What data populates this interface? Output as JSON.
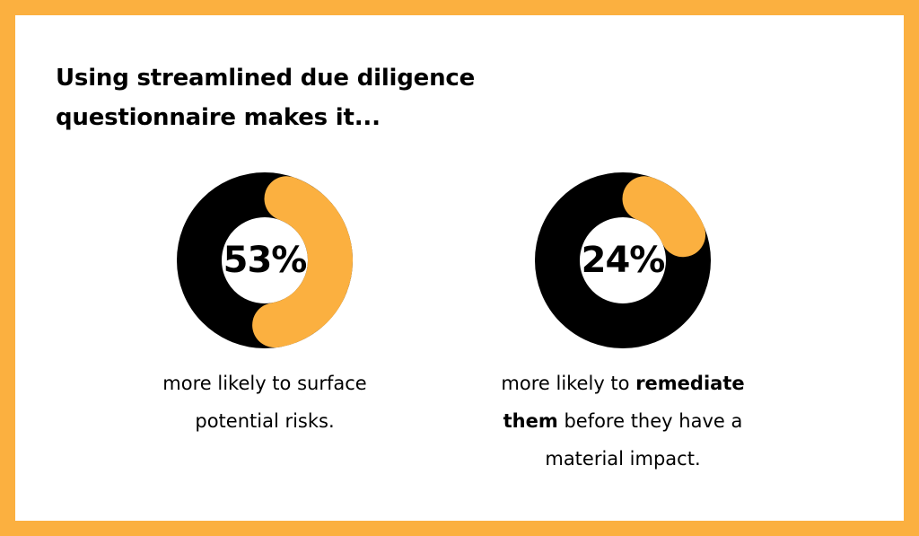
{
  "title": {
    "line1": "Using streamlined due diligence",
    "line2": "questionnaire makes it..."
  },
  "colors": {
    "accent": "#FBB040",
    "dark": "#000000",
    "background": "#FFFFFF"
  },
  "chart_data": [
    {
      "type": "pie",
      "variant": "donut",
      "value_percent": 53,
      "label": "53%",
      "caption": {
        "line1": "more likely to surface",
        "line2": "potential risks."
      }
    },
    {
      "type": "pie",
      "variant": "donut",
      "value_percent": 24,
      "label": "24%",
      "caption": {
        "line1_plain": "more likely to ",
        "line1_bold": "remediate",
        "line2_bold": "them",
        "line2_plain": " before they have a",
        "line3": "material impact."
      }
    }
  ]
}
